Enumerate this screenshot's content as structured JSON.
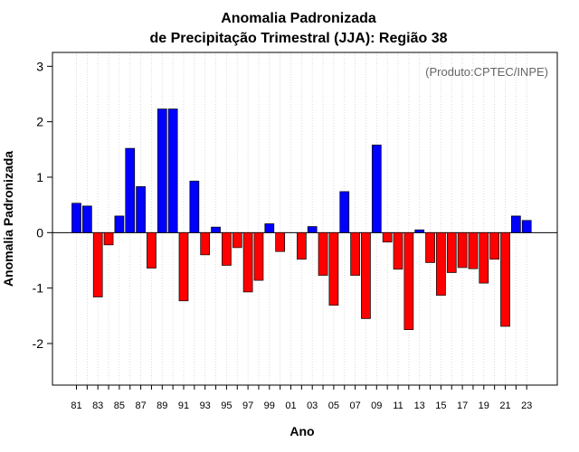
{
  "chart_data": {
    "type": "bar",
    "title": [
      "Anomalia Padronizada",
      "de Precipitação Trimestral (JJA): Região 38"
    ],
    "xlabel": "Ano",
    "ylabel": "Anomalia Padronizada",
    "annotation": "(Produto:CPTEC/INPE)",
    "ylim": [
      -2.75,
      3.25
    ],
    "yticks": [
      -2,
      -1,
      0,
      1,
      2,
      3
    ],
    "ytick_labels": [
      "-2",
      "-1",
      "0",
      "1",
      "2",
      "3"
    ],
    "grid": "vertical dotted",
    "categories": [
      "81",
      "82",
      "83",
      "84",
      "85",
      "86",
      "87",
      "88",
      "89",
      "90",
      "91",
      "92",
      "93",
      "94",
      "95",
      "96",
      "97",
      "98",
      "99",
      "00",
      "01",
      "02",
      "03",
      "04",
      "05",
      "06",
      "07",
      "08",
      "09",
      "10",
      "11",
      "12",
      "13",
      "14",
      "15",
      "16",
      "17",
      "18",
      "19",
      "20",
      "21",
      "22",
      "23"
    ],
    "xtick_labels": [
      "81",
      "83",
      "85",
      "87",
      "89",
      "91",
      "93",
      "95",
      "97",
      "99",
      "01",
      "03",
      "05",
      "07",
      "09",
      "11",
      "13",
      "15",
      "17",
      "19",
      "21",
      "23"
    ],
    "values": [
      0.53,
      0.48,
      -1.16,
      -0.22,
      0.3,
      1.52,
      0.83,
      -0.64,
      2.23,
      2.23,
      -1.23,
      0.93,
      -0.4,
      0.1,
      -0.59,
      -0.27,
      -1.07,
      -0.86,
      0.16,
      -0.34,
      0.0,
      -0.48,
      0.11,
      -0.77,
      -1.31,
      0.74,
      -0.77,
      -1.55,
      1.58,
      -0.17,
      -0.66,
      -1.75,
      0.05,
      -0.54,
      -1.13,
      -0.72,
      -0.63,
      -0.65,
      -0.91,
      -0.48,
      -1.69,
      0.3,
      0.22
    ],
    "colors": {
      "positive": "#0000ff",
      "negative": "#ff0000",
      "outline": "#000000",
      "grid": "#d3d3d3"
    }
  }
}
